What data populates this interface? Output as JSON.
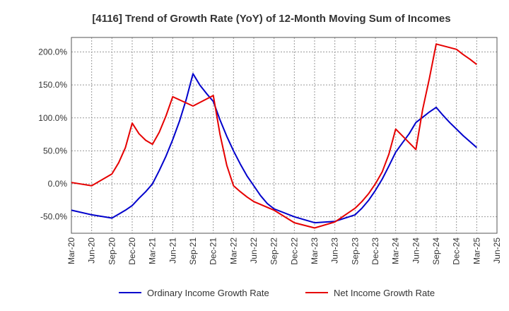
{
  "chart_data": {
    "type": "line",
    "title": "[4116]  Trend of Growth Rate (YoY) of 12-Month Moving Sum of Incomes",
    "xlabel": "",
    "ylabel": "",
    "x_ticks": [
      "Mar-20",
      "Jun-20",
      "Sep-20",
      "Dec-20",
      "Mar-21",
      "Jun-21",
      "Sep-21",
      "Dec-21",
      "Mar-22",
      "Jun-22",
      "Sep-22",
      "Dec-22",
      "Mar-23",
      "Jun-23",
      "Sep-23",
      "Dec-23",
      "Mar-24",
      "Jun-24",
      "Sep-24",
      "Dec-24",
      "Mar-25",
      "Jun-25"
    ],
    "y_ticks": [
      -50,
      0,
      50,
      100,
      150,
      200
    ],
    "y_tick_labels": [
      "-50.0%",
      "0.0%",
      "50.0%",
      "100.0%",
      "150.0%",
      "200.0%"
    ],
    "ylim": [
      -75,
      222
    ],
    "grid": true,
    "legend_position": "bottom",
    "series": [
      {
        "name": "Ordinary Income Growth Rate",
        "color": "#0000cc",
        "points": [
          [
            "Mar-20",
            -40
          ],
          [
            "Jun-20",
            -47
          ],
          [
            "Sep-20",
            -52
          ],
          [
            "Oct-20",
            -46
          ],
          [
            "Nov-20",
            -40
          ],
          [
            "Dec-20",
            -33
          ],
          [
            "Jan-21",
            -22
          ],
          [
            "Feb-21",
            -12
          ],
          [
            "Mar-21",
            0
          ],
          [
            "Apr-21",
            20
          ],
          [
            "May-21",
            42
          ],
          [
            "Jun-21",
            67
          ],
          [
            "Jul-21",
            95
          ],
          [
            "Aug-21",
            128
          ],
          [
            "Sep-21",
            167
          ],
          [
            "Oct-21",
            150
          ],
          [
            "Nov-21",
            137
          ],
          [
            "Dec-21",
            125
          ],
          [
            "Jan-22",
            97
          ],
          [
            "Feb-22",
            72
          ],
          [
            "Mar-22",
            50
          ],
          [
            "Apr-22",
            30
          ],
          [
            "May-22",
            12
          ],
          [
            "Jun-22",
            -3
          ],
          [
            "Jul-22",
            -18
          ],
          [
            "Aug-22",
            -30
          ],
          [
            "Sep-22",
            -38
          ],
          [
            "Dec-22",
            -50
          ],
          [
            "Mar-23",
            -59
          ],
          [
            "Jun-23",
            -57
          ],
          [
            "Sep-23",
            -47
          ],
          [
            "Oct-23",
            -37
          ],
          [
            "Nov-23",
            -25
          ],
          [
            "Dec-23",
            -10
          ],
          [
            "Jan-24",
            7
          ],
          [
            "Feb-24",
            27
          ],
          [
            "Mar-24",
            48
          ],
          [
            "Apr-24",
            62
          ],
          [
            "May-24",
            76
          ],
          [
            "Jun-24",
            93
          ],
          [
            "Jul-24",
            101
          ],
          [
            "Aug-24",
            109
          ],
          [
            "Sep-24",
            116
          ],
          [
            "Oct-24",
            104
          ],
          [
            "Nov-24",
            93
          ],
          [
            "Dec-24",
            83
          ],
          [
            "Jan-25",
            73
          ],
          [
            "Feb-25",
            64
          ],
          [
            "Mar-25",
            55
          ]
        ]
      },
      {
        "name": "Net Income Growth Rate",
        "color": "#e60000",
        "points": [
          [
            "Mar-20",
            2
          ],
          [
            "Jun-20",
            -3
          ],
          [
            "Sep-20",
            15
          ],
          [
            "Oct-20",
            32
          ],
          [
            "Nov-20",
            55
          ],
          [
            "Dec-20",
            92
          ],
          [
            "Jan-21",
            76
          ],
          [
            "Feb-21",
            66
          ],
          [
            "Mar-21",
            60
          ],
          [
            "Apr-21",
            78
          ],
          [
            "May-21",
            103
          ],
          [
            "Jun-21",
            132
          ],
          [
            "Sep-21",
            118
          ],
          [
            "Dec-21",
            134
          ],
          [
            "Jan-22",
            75
          ],
          [
            "Feb-22",
            28
          ],
          [
            "Mar-22",
            -3
          ],
          [
            "Apr-22",
            -12
          ],
          [
            "May-22",
            -20
          ],
          [
            "Jun-22",
            -27
          ],
          [
            "Sep-22",
            -40
          ],
          [
            "Dec-22",
            -59
          ],
          [
            "Mar-23",
            -67
          ],
          [
            "Jun-23",
            -58
          ],
          [
            "Sep-23",
            -37
          ],
          [
            "Oct-23",
            -27
          ],
          [
            "Nov-23",
            -15
          ],
          [
            "Dec-23",
            0
          ],
          [
            "Jan-24",
            18
          ],
          [
            "Feb-24",
            45
          ],
          [
            "Mar-24",
            83
          ],
          [
            "Jun-24",
            52
          ],
          [
            "Jul-24",
            113
          ],
          [
            "Aug-24",
            160
          ],
          [
            "Sep-24",
            212
          ],
          [
            "Dec-24",
            204
          ],
          [
            "Jan-25",
            196
          ],
          [
            "Feb-25",
            189
          ],
          [
            "Mar-25",
            181
          ]
        ]
      }
    ]
  }
}
